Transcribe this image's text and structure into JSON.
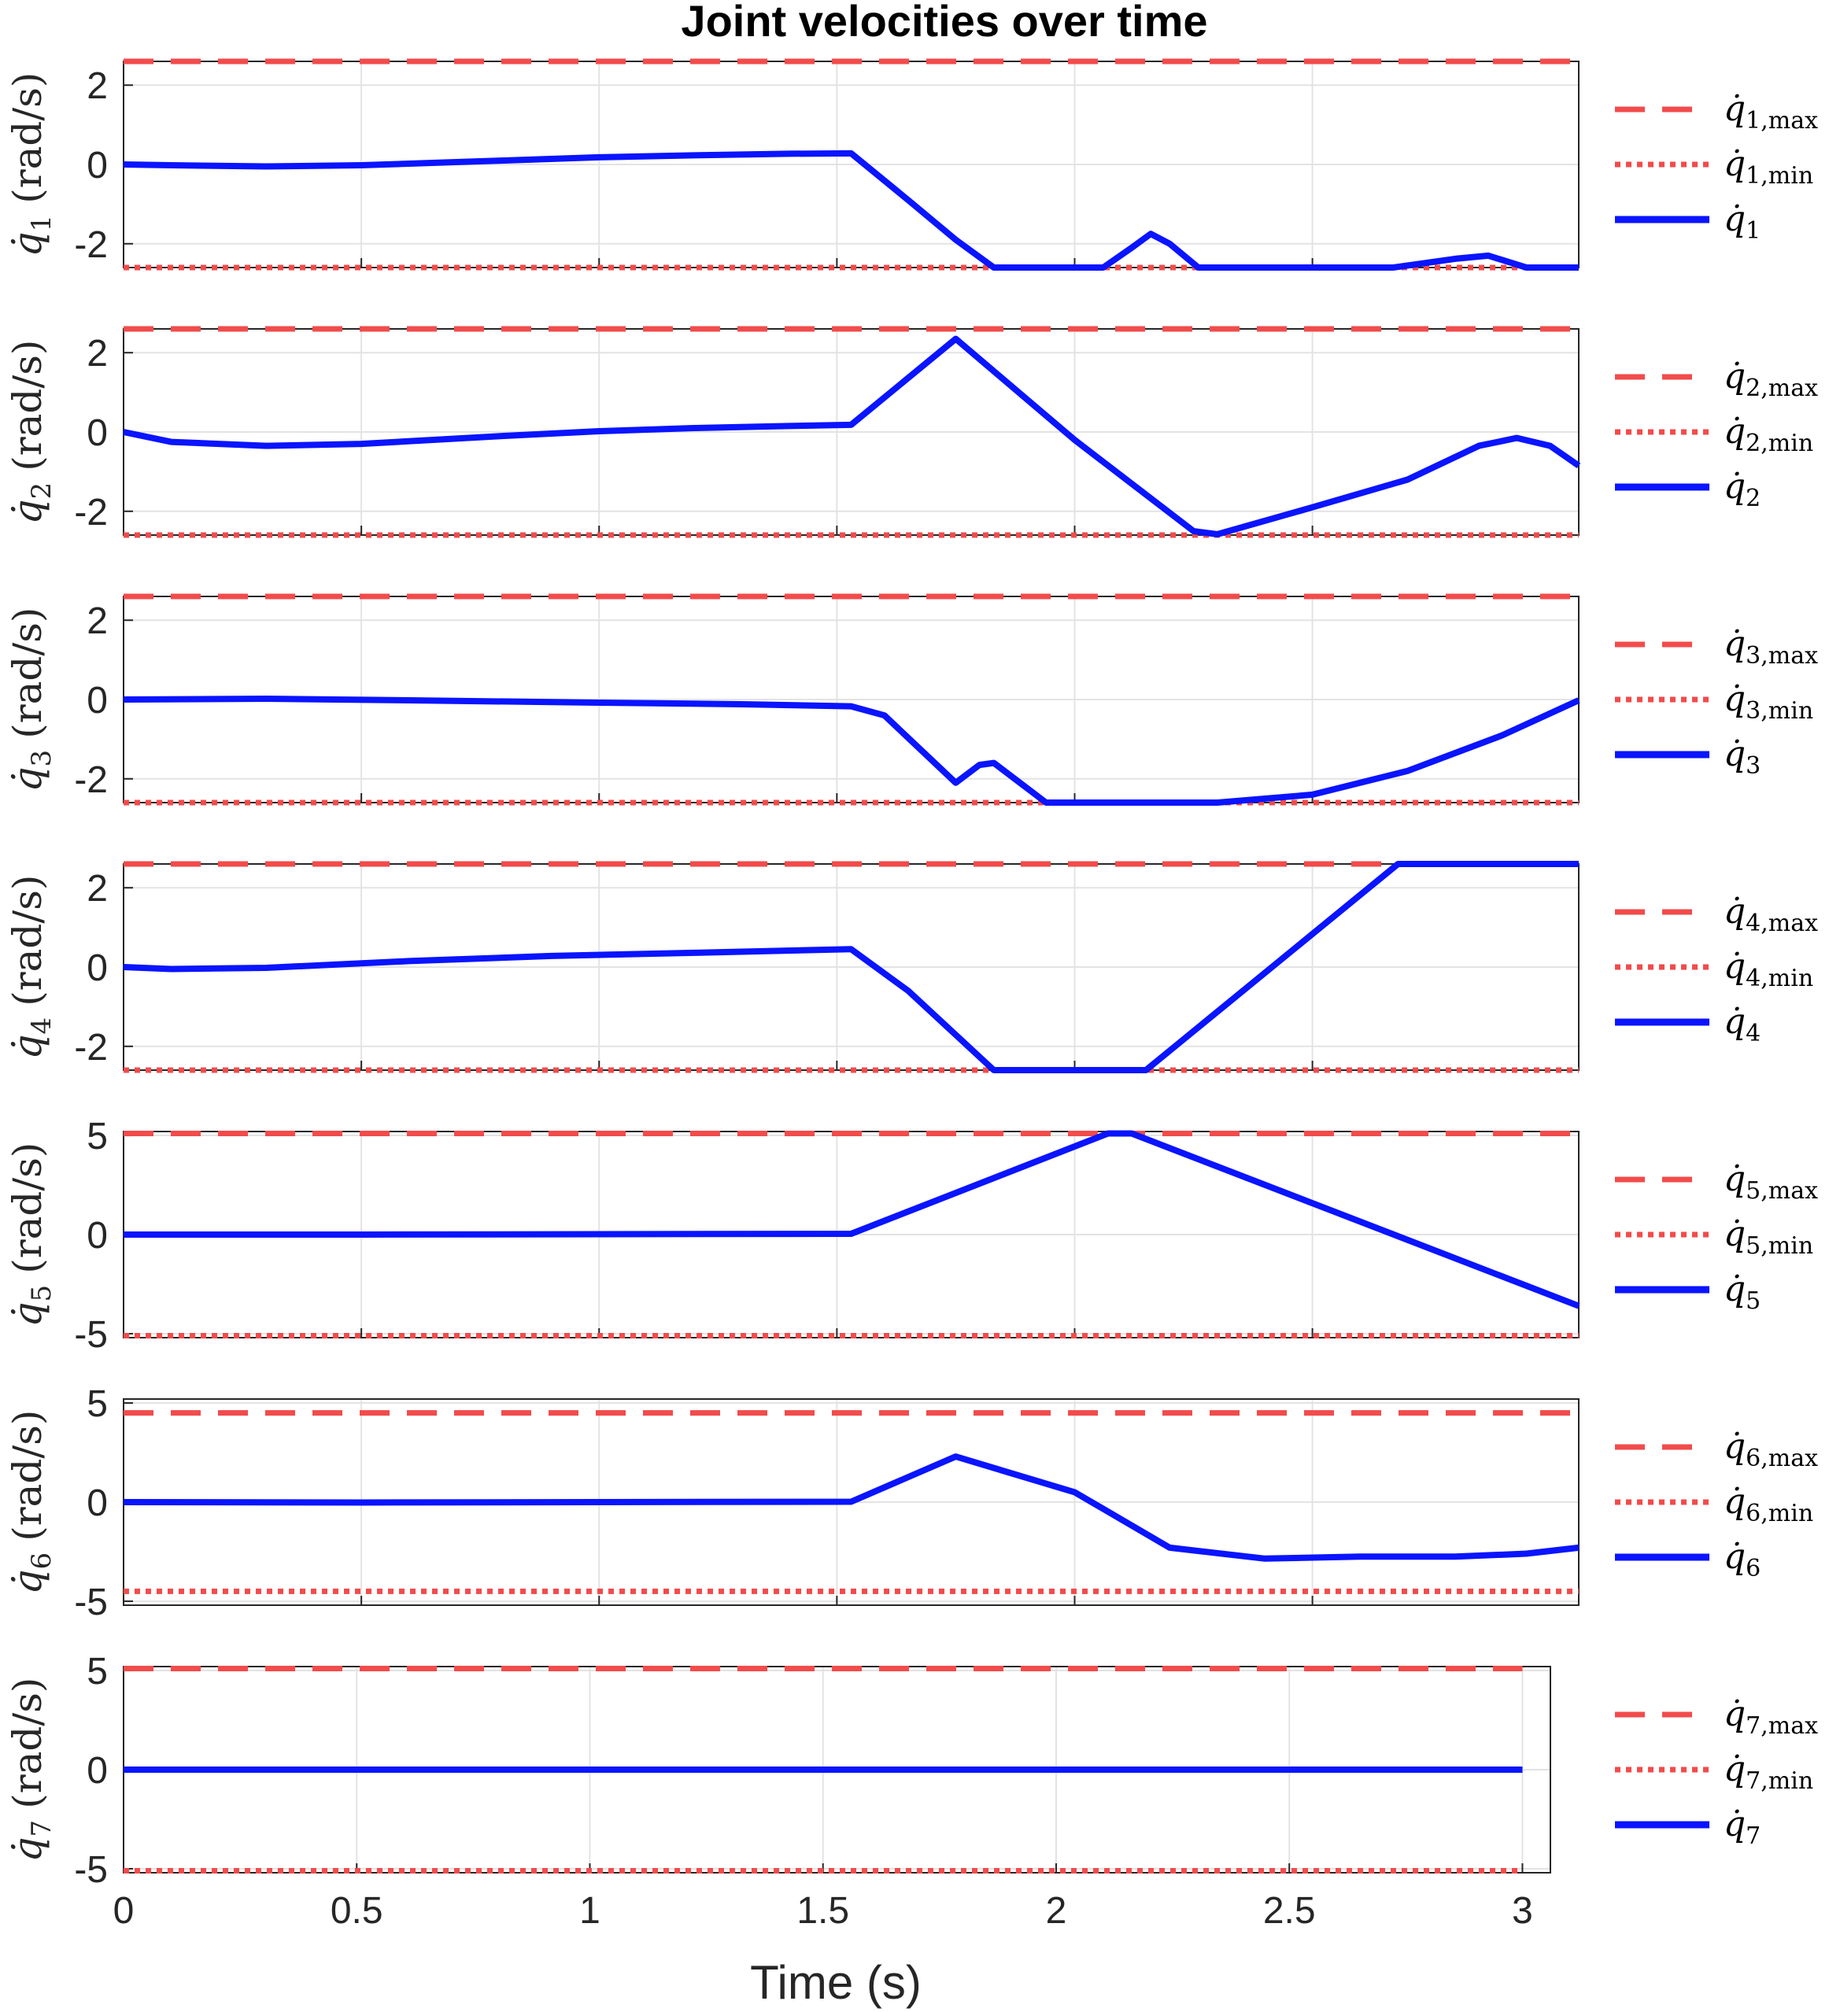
{
  "chart_data": {
    "type": "line",
    "title": "Joint velocities over time",
    "xlabel": "Time (s)",
    "colors": {
      "limit": "#f24b4b",
      "series": "#0a14ff",
      "grid": "#e3e3e3",
      "axis": "#262626"
    },
    "legend_position": "right",
    "panels": [
      {
        "ylabel_var": "q̇",
        "ylabel_sub": "1",
        "ylabel_unit": "(rad/s)",
        "ylim": [
          -2.6,
          2.6
        ],
        "yticks": [
          2,
          0,
          -2
        ],
        "ytick_labels": [
          "2",
          "0",
          "-2"
        ],
        "xlim": [
          0,
          3.06
        ],
        "xticks": [
          0.5,
          1,
          1.5,
          2,
          2.5
        ],
        "max": 2.6,
        "min": -2.6,
        "legend": [
          {
            "var": "q̇",
            "sub": "1,max",
            "style": "dashed"
          },
          {
            "var": "q̇",
            "sub": "1,min",
            "style": "dotted"
          },
          {
            "var": "q̇",
            "sub": "1",
            "style": "solid"
          }
        ],
        "series": [
          {
            "name": "q̇1",
            "x": [
              0,
              0.1,
              0.3,
              0.5,
              0.8,
              1.0,
              1.2,
              1.4,
              1.53,
              1.65,
              1.75,
              1.83,
              2.06,
              2.12,
              2.16,
              2.2,
              2.26,
              2.5,
              2.67,
              2.8,
              2.87,
              2.95,
              3.06
            ],
            "y": [
              0,
              -0.02,
              -0.05,
              -0.02,
              0.1,
              0.18,
              0.23,
              0.27,
              0.28,
              -0.9,
              -1.9,
              -2.6,
              -2.6,
              -2.1,
              -1.75,
              -2.0,
              -2.6,
              -2.6,
              -2.6,
              -2.38,
              -2.3,
              -2.6,
              -2.6
            ]
          }
        ]
      },
      {
        "ylabel_var": "q̇",
        "ylabel_sub": "2",
        "ylabel_unit": "(rad/s)",
        "ylim": [
          -2.6,
          2.6
        ],
        "yticks": [
          2,
          0,
          -2
        ],
        "ytick_labels": [
          "2",
          "0",
          "-2"
        ],
        "xlim": [
          0,
          3.06
        ],
        "xticks": [
          0.5,
          1,
          1.5,
          2,
          2.5
        ],
        "max": 2.6,
        "min": -2.6,
        "legend": [
          {
            "var": "q̇",
            "sub": "2,max",
            "style": "dashed"
          },
          {
            "var": "q̇",
            "sub": "2,min",
            "style": "dotted"
          },
          {
            "var": "q̇",
            "sub": "2",
            "style": "solid"
          }
        ],
        "series": [
          {
            "name": "q̇2",
            "x": [
              0,
              0.1,
              0.3,
              0.5,
              0.8,
              1.0,
              1.2,
              1.4,
              1.53,
              1.75,
              2.0,
              2.25,
              2.3,
              2.5,
              2.7,
              2.85,
              2.93,
              3.0,
              3.06
            ],
            "y": [
              0,
              -0.25,
              -0.35,
              -0.3,
              -0.1,
              0.02,
              0.1,
              0.15,
              0.18,
              2.35,
              -0.2,
              -2.5,
              -2.58,
              -1.9,
              -1.2,
              -0.35,
              -0.15,
              -0.35,
              -0.85
            ]
          }
        ]
      },
      {
        "ylabel_var": "q̇",
        "ylabel_sub": "3",
        "ylabel_unit": "(rad/s)",
        "ylim": [
          -2.6,
          2.6
        ],
        "yticks": [
          2,
          0,
          -2
        ],
        "ytick_labels": [
          "2",
          "0",
          "-2"
        ],
        "xlim": [
          0,
          3.06
        ],
        "xticks": [
          0.5,
          1,
          1.5,
          2,
          2.5
        ],
        "max": 2.6,
        "min": -2.6,
        "legend": [
          {
            "var": "q̇",
            "sub": "3,max",
            "style": "dashed"
          },
          {
            "var": "q̇",
            "sub": "3,min",
            "style": "dotted"
          },
          {
            "var": "q̇",
            "sub": "3",
            "style": "solid"
          }
        ],
        "series": [
          {
            "name": "q̇3",
            "x": [
              0,
              0.3,
              0.6,
              1.0,
              1.3,
              1.53,
              1.6,
              1.75,
              1.8,
              1.83,
              1.94,
              2.3,
              2.5,
              2.7,
              2.9,
              3.06
            ],
            "y": [
              0,
              0.02,
              -0.02,
              -0.08,
              -0.12,
              -0.17,
              -0.4,
              -2.1,
              -1.65,
              -1.6,
              -2.6,
              -2.6,
              -2.4,
              -1.8,
              -0.9,
              -0.02
            ]
          }
        ]
      },
      {
        "ylabel_var": "q̇",
        "ylabel_sub": "4",
        "ylabel_unit": "(rad/s)",
        "ylim": [
          -2.6,
          2.6
        ],
        "yticks": [
          2,
          0,
          -2
        ],
        "ytick_labels": [
          "2",
          "0",
          "-2"
        ],
        "xlim": [
          0,
          3.06
        ],
        "xticks": [
          0.5,
          1,
          1.5,
          2,
          2.5
        ],
        "max": 2.6,
        "min": -2.6,
        "legend": [
          {
            "var": "q̇",
            "sub": "4,max",
            "style": "dashed"
          },
          {
            "var": "q̇",
            "sub": "4,min",
            "style": "dotted"
          },
          {
            "var": "q̇",
            "sub": "4",
            "style": "solid"
          }
        ],
        "series": [
          {
            "name": "q̇4",
            "x": [
              0,
              0.1,
              0.3,
              0.6,
              0.9,
              1.2,
              1.53,
              1.65,
              1.83,
              2.15,
              2.68,
              3.06
            ],
            "y": [
              0,
              -0.05,
              -0.02,
              0.15,
              0.28,
              0.36,
              0.45,
              -0.6,
              -2.6,
              -2.6,
              2.6,
              2.6
            ]
          }
        ]
      },
      {
        "ylabel_var": "q̇",
        "ylabel_sub": "5",
        "ylabel_unit": "(rad/s)",
        "ylim": [
          -5.2,
          5.2
        ],
        "yticks": [
          5,
          0,
          -5
        ],
        "ytick_labels": [
          "5",
          "0",
          "-5"
        ],
        "xlim": [
          0,
          3.06
        ],
        "xticks": [
          0.5,
          1,
          1.5,
          2,
          2.5
        ],
        "max": 5.1,
        "min": -5.1,
        "legend": [
          {
            "var": "q̇",
            "sub": "5,max",
            "style": "dashed"
          },
          {
            "var": "q̇",
            "sub": "5,min",
            "style": "dotted"
          },
          {
            "var": "q̇",
            "sub": "5",
            "style": "solid"
          }
        ],
        "series": [
          {
            "name": "q̇5",
            "x": [
              0,
              0.5,
              1.0,
              1.53,
              2.07,
              2.12,
              3.06
            ],
            "y": [
              0,
              0,
              0.02,
              0.04,
              5.1,
              5.1,
              -3.6
            ]
          }
        ]
      },
      {
        "ylabel_var": "q̇",
        "ylabel_sub": "6",
        "ylabel_unit": "(rad/s)",
        "ylim": [
          -5.2,
          5.2
        ],
        "yticks": [
          5,
          0,
          -5
        ],
        "ytick_labels": [
          "5",
          "0",
          "-5"
        ],
        "xlim": [
          0,
          3.06
        ],
        "xticks": [
          0.5,
          1,
          1.5,
          2,
          2.5
        ],
        "max": 4.5,
        "min": -4.5,
        "legend": [
          {
            "var": "q̇",
            "sub": "6,max",
            "style": "dashed"
          },
          {
            "var": "q̇",
            "sub": "6,min",
            "style": "dotted"
          },
          {
            "var": "q̇",
            "sub": "6",
            "style": "solid"
          }
        ],
        "series": [
          {
            "name": "q̇6",
            "x": [
              0,
              0.5,
              1.0,
              1.53,
              1.75,
              2.0,
              2.2,
              2.4,
              2.6,
              2.8,
              2.95,
              3.06
            ],
            "y": [
              0,
              -0.02,
              0,
              0.02,
              2.3,
              0.5,
              -2.3,
              -2.85,
              -2.75,
              -2.75,
              -2.6,
              -2.3
            ]
          }
        ]
      },
      {
        "ylabel_var": "q̇",
        "ylabel_sub": "7",
        "ylabel_unit": "(rad/s)",
        "ylim": [
          -5.2,
          5.2
        ],
        "yticks": [
          5,
          0,
          -5
        ],
        "ytick_labels": [
          "5",
          "0",
          "-5"
        ],
        "xlim": [
          0,
          3.06
        ],
        "xticks": [
          0.5,
          1,
          1.5,
          2,
          2.5,
          3
        ],
        "max": 5.1,
        "min": -5.1,
        "line_xmax": 3.0,
        "legend": [
          {
            "var": "q̇",
            "sub": "7,max",
            "style": "dashed"
          },
          {
            "var": "q̇",
            "sub": "7,min",
            "style": "dotted"
          },
          {
            "var": "q̇",
            "sub": "7",
            "style": "solid"
          }
        ],
        "series": [
          {
            "name": "q̇7",
            "x": [
              0,
              3.0
            ],
            "y": [
              0,
              0
            ]
          }
        ]
      }
    ],
    "xtick_labels": [
      "0",
      "0.5",
      "1",
      "1.5",
      "2",
      "2.5",
      "3"
    ],
    "xtick_values": [
      0,
      0.5,
      1,
      1.5,
      2,
      2.5,
      3
    ]
  }
}
